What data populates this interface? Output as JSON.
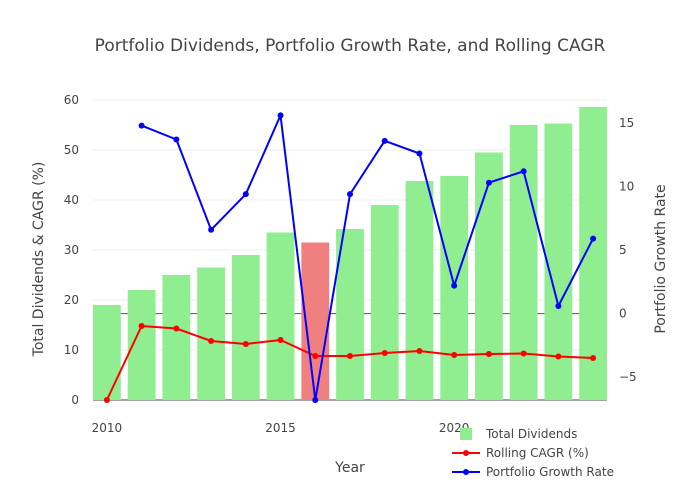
{
  "chart_data": {
    "type": "bar+line",
    "title": "Portfolio Dividends, Portfolio Growth Rate, and Rolling CAGR",
    "xlabel": "Year",
    "ylabel_left": "Total Dividends & CAGR (%)",
    "ylabel_right": "Portfolio Growth Rate",
    "x": [
      2010,
      2011,
      2012,
      2013,
      2014,
      2015,
      2016,
      2017,
      2018,
      2019,
      2020,
      2021,
      2022,
      2023,
      2024
    ],
    "x_ticks": [
      2010,
      2015,
      2020
    ],
    "y_left_ticks": [
      0,
      10,
      20,
      30,
      40,
      50,
      60
    ],
    "y_right_ticks": [
      -5,
      0,
      5,
      10,
      15
    ],
    "ylim_left": [
      0,
      62
    ],
    "ylim_right": [
      -6.8,
      17.6
    ],
    "grid": true,
    "legend_position": "bottom-right",
    "series": [
      {
        "name": "Total Dividends",
        "kind": "bar",
        "axis": "left",
        "color": "#90ee90",
        "highlight_color": "#f08080",
        "highlight_index": 6,
        "values": [
          19,
          22,
          25,
          26.5,
          29,
          33.5,
          31.5,
          34.2,
          39,
          43.8,
          44.8,
          49.5,
          55,
          55.3,
          58.6
        ]
      },
      {
        "name": "Rolling CAGR (%)",
        "kind": "line",
        "axis": "left",
        "color": "#ff0000",
        "values": [
          0,
          14.8,
          14.3,
          11.8,
          11.2,
          12.0,
          8.8,
          8.8,
          9.4,
          9.8,
          9.0,
          9.2,
          9.3,
          8.7,
          8.4
        ]
      },
      {
        "name": "Portfolio Growth Rate",
        "kind": "line",
        "axis": "right",
        "color": "#0000ff",
        "x": [
          2011,
          2012,
          2013,
          2014,
          2015,
          2016,
          2017,
          2018,
          2019,
          2020,
          2021,
          2022,
          2023,
          2024
        ],
        "values": [
          14.8,
          13.7,
          6.6,
          9.4,
          15.6,
          -6.8,
          9.4,
          13.6,
          12.6,
          2.2,
          10.3,
          11.2,
          0.6,
          5.9
        ]
      }
    ]
  }
}
